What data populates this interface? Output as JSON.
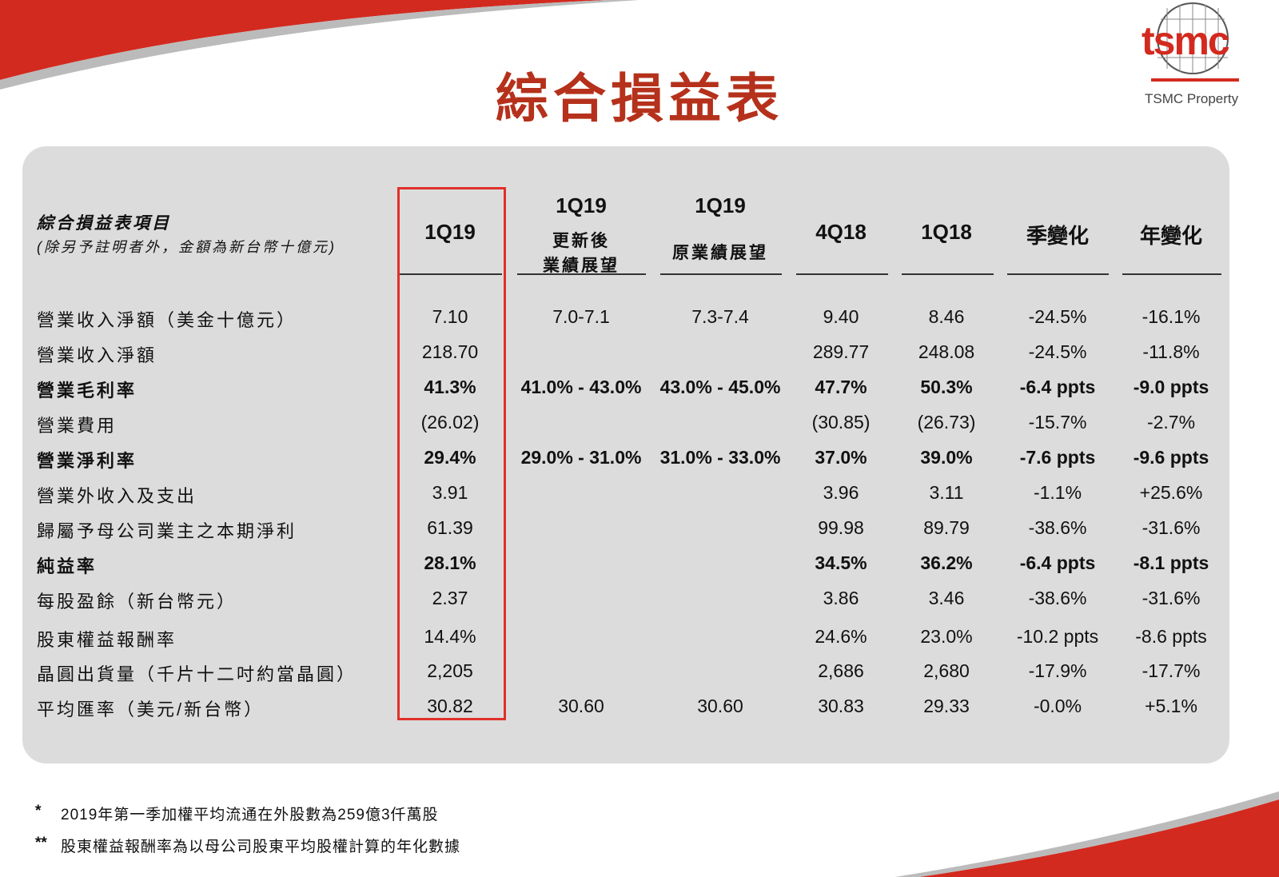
{
  "header": {
    "title": "綜合損益表",
    "logo": "tsmc",
    "property": "TSMC Property"
  },
  "table": {
    "label_header": {
      "title": "綜合損益表項目",
      "note": "(除另予註明者外，金額為新台幣十億元)"
    },
    "columns": [
      {
        "title": "1Q19"
      },
      {
        "title": "1Q19",
        "note": [
          "更新後",
          "業績展望"
        ]
      },
      {
        "title": "1Q19",
        "note": [
          "原業績展望"
        ]
      },
      {
        "title": "4Q18"
      },
      {
        "title": "1Q18"
      },
      {
        "title": "季變化"
      },
      {
        "title": "年變化"
      }
    ],
    "rows": [
      {
        "label": "營業收入淨額（美金十億元）",
        "cells": [
          "7.10",
          "7.0-7.1",
          "7.3-7.4",
          "9.40",
          "8.46",
          "-24.5%",
          "-16.1%"
        ],
        "bold": false
      },
      {
        "label": "營業收入淨額",
        "cells": [
          "218.70",
          null,
          null,
          "289.77",
          "248.08",
          "-24.5%",
          "-11.8%"
        ],
        "bold": false
      },
      {
        "label": "營業毛利率",
        "cells": [
          "41.3%",
          "41.0% - 43.0%",
          "43.0% - 45.0%",
          "47.7%",
          "50.3%",
          "-6.4 ppts",
          "-9.0 ppts"
        ],
        "bold": true
      },
      {
        "label": "營業費用",
        "cells": [
          "(26.02)",
          null,
          null,
          "(30.85)",
          "(26.73)",
          "-15.7%",
          "-2.7%"
        ],
        "bold": false
      },
      {
        "label": "營業淨利率",
        "cells": [
          "29.4%",
          "29.0% - 31.0%",
          "31.0% - 33.0%",
          "37.0%",
          "39.0%",
          "-7.6 ppts",
          "-9.6 ppts"
        ],
        "bold": true
      },
      {
        "label": "營業外收入及支出",
        "cells": [
          "3.91",
          null,
          null,
          "3.96",
          "3.11",
          "-1.1%",
          "+25.6%"
        ],
        "bold": false
      },
      {
        "label": "歸屬予母公司業主之本期淨利",
        "cells": [
          "61.39",
          null,
          null,
          "99.98",
          "89.79",
          "-38.6%",
          "-31.6%"
        ],
        "bold": false
      },
      {
        "label": "純益率",
        "cells": [
          "28.1%",
          null,
          null,
          "34.5%",
          "36.2%",
          "-6.4 ppts",
          "-8.1 ppts"
        ],
        "bold": true
      },
      {
        "label": "每股盈餘（新台幣元）",
        "cells": [
          "2.37",
          null,
          null,
          "3.86",
          "3.46",
          "-38.6%",
          "-31.6%"
        ],
        "bold": false
      },
      {
        "label": "股東權益報酬率",
        "cells": [
          "14.4%",
          null,
          null,
          "24.6%",
          "23.0%",
          "-10.2 ppts",
          "-8.6 ppts"
        ],
        "bold": false
      },
      {
        "label": "晶圓出貨量（千片十二吋約當晶圓）",
        "cells": [
          "2,205",
          null,
          null,
          "2,686",
          "2,680",
          "-17.9%",
          "-17.7%"
        ],
        "bold": false
      },
      {
        "label": "平均匯率（美元/新台幣）",
        "cells": [
          "30.82",
          "30.60",
          "30.60",
          "30.83",
          "29.33",
          "-0.0%",
          "+5.1%"
        ],
        "bold": false
      }
    ]
  },
  "footnotes": [
    {
      "mark": "*",
      "text": "2019年第一季加權平均流通在外股數為259億3仟萬股"
    },
    {
      "mark": "**",
      "text": "股東權益報酬率為以母公司股東平均股權計算的年化數據"
    }
  ]
}
